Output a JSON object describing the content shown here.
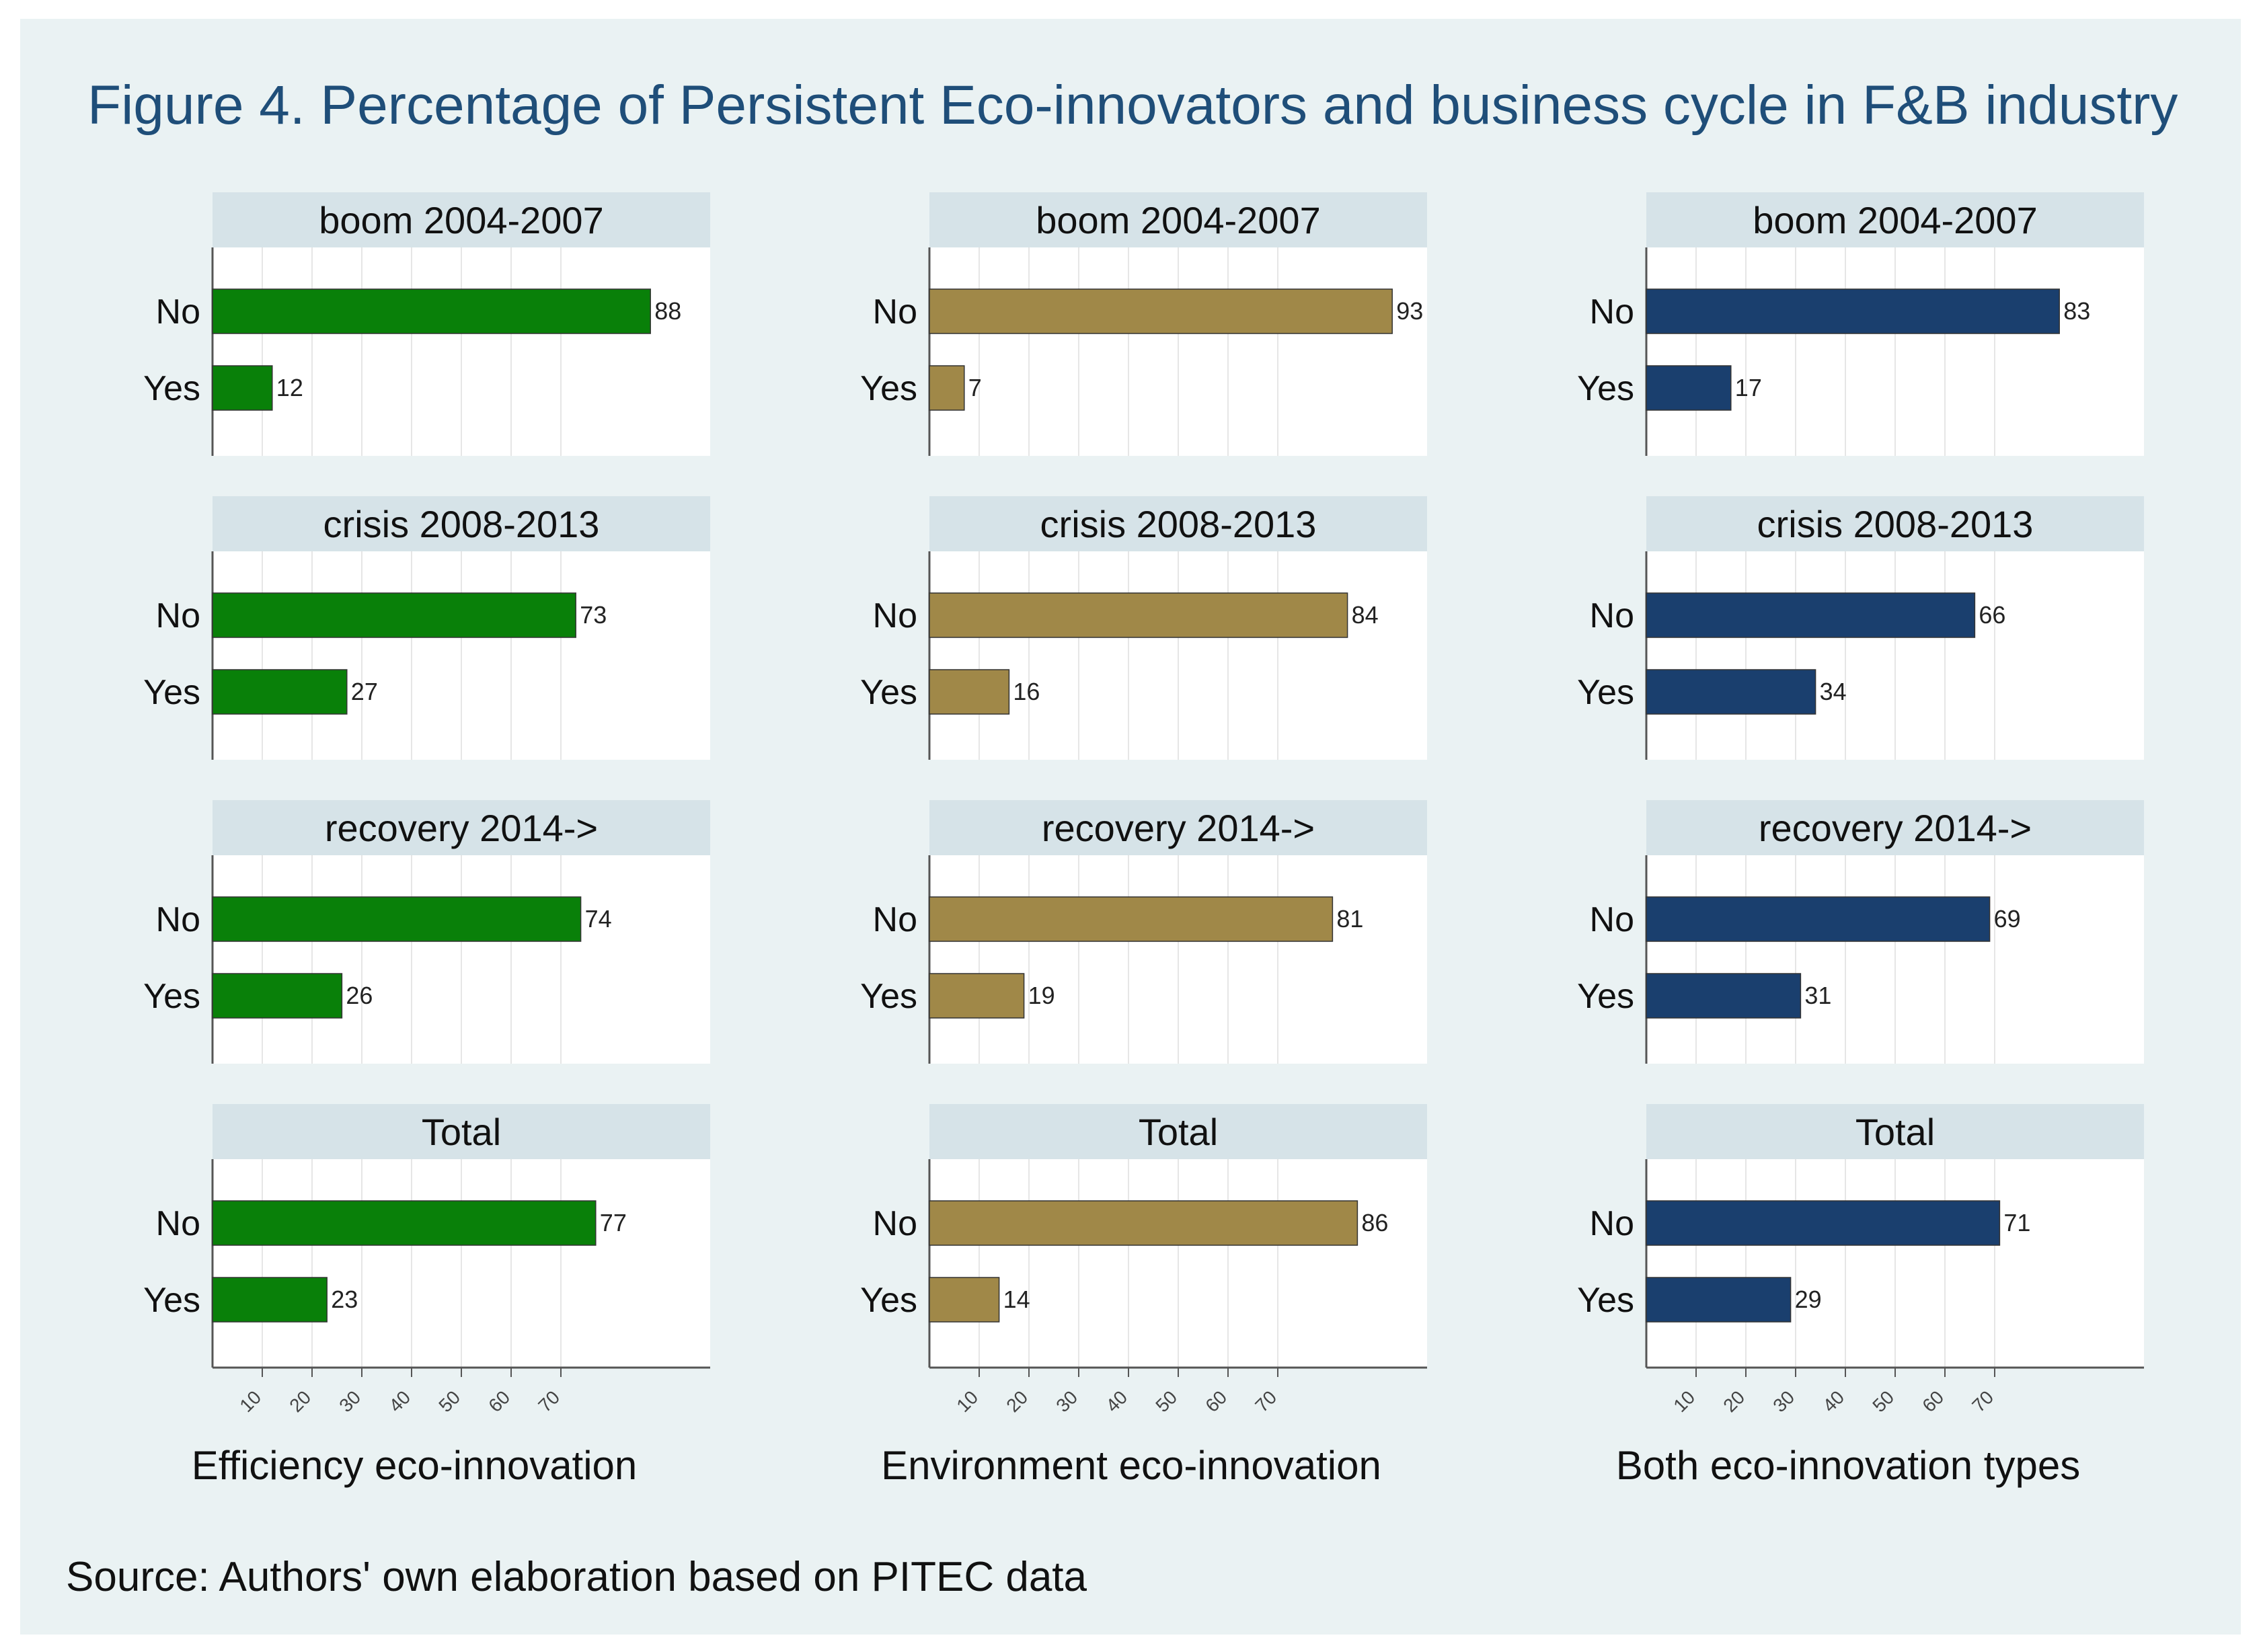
{
  "title": "Figure 4. Percentage of Persistent Eco-innovators and business cycle in F&B industry",
  "source": "Source: Authors' own elaboration based on PITEC data",
  "colors": {
    "efficiency": "#098009",
    "environment": "#a08848",
    "both": "#1a3f6e",
    "background": "#eaf2f3",
    "strip": "#d6e3e8",
    "panel": "#ffffff",
    "grid": "#e6e6e6"
  },
  "chart_data": {
    "type": "bar",
    "orientation": "horizontal",
    "categories": [
      "No",
      "Yes"
    ],
    "xlim": [
      0,
      100
    ],
    "x_ticks": [
      10,
      20,
      30,
      40,
      50,
      60,
      70
    ],
    "periods": [
      "boom 2004-2007",
      "crisis 2008-2013",
      "recovery 2014->",
      "Total"
    ],
    "series": [
      {
        "name": "Efficiency eco-innovation",
        "color": "#098009",
        "panels": [
          {
            "period": "boom 2004-2007",
            "values": [
              88,
              12
            ]
          },
          {
            "period": "crisis 2008-2013",
            "values": [
              73,
              27
            ]
          },
          {
            "period": "recovery 2014->",
            "values": [
              74,
              26
            ]
          },
          {
            "period": "Total",
            "values": [
              77,
              23
            ]
          }
        ]
      },
      {
        "name": "Environment eco-innovation",
        "color": "#a08848",
        "panels": [
          {
            "period": "boom 2004-2007",
            "values": [
              93,
              7
            ]
          },
          {
            "period": "crisis 2008-2013",
            "values": [
              84,
              16
            ]
          },
          {
            "period": "recovery 2014->",
            "values": [
              81,
              19
            ]
          },
          {
            "period": "Total",
            "values": [
              86,
              14
            ]
          }
        ]
      },
      {
        "name": "Both eco-innovation types",
        "color": "#1a3f6e",
        "panels": [
          {
            "period": "boom 2004-2007",
            "values": [
              83,
              17
            ]
          },
          {
            "period": "crisis 2008-2013",
            "values": [
              66,
              34
            ]
          },
          {
            "period": "recovery 2014->",
            "values": [
              69,
              31
            ]
          },
          {
            "period": "Total",
            "values": [
              71,
              29
            ]
          }
        ]
      }
    ]
  }
}
